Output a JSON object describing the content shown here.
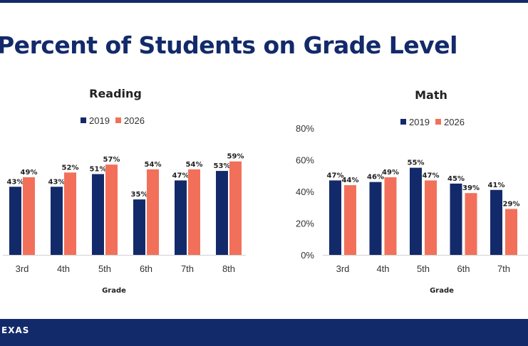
{
  "page": {
    "title": "Percent of Students on Grade Level",
    "footer_logo": "EXAS"
  },
  "colors": {
    "series_2019": "#132a6a",
    "series_2026": "#f2705a",
    "brand": "#132a6a"
  },
  "chart_data": [
    {
      "type": "bar",
      "title": "Reading",
      "xlabel": "Grade",
      "ylabel": "",
      "categories": [
        "3rd",
        "4th",
        "5th",
        "6th",
        "7th",
        "8th"
      ],
      "series": [
        {
          "name": "2019",
          "values": [
            43,
            43,
            51,
            35,
            47,
            53
          ],
          "labels": [
            "43%",
            "43%",
            "51%",
            "35%",
            "47%",
            "53%"
          ]
        },
        {
          "name": "2026",
          "values": [
            49,
            52,
            57,
            54,
            54,
            59
          ],
          "labels": [
            "49%",
            "52%",
            "57%",
            "54%",
            "54%",
            "59%"
          ]
        }
      ],
      "ylim": [
        0,
        80
      ],
      "legend": "top-center",
      "grid": false
    },
    {
      "type": "bar",
      "title": "Math",
      "xlabel": "Grade",
      "ylabel": "",
      "categories": [
        "3rd",
        "4th",
        "5th",
        "6th",
        "7th"
      ],
      "series": [
        {
          "name": "2019",
          "values": [
            47,
            46,
            55,
            45,
            41
          ],
          "labels": [
            "47%",
            "46%",
            "55%",
            "45%",
            "41%"
          ]
        },
        {
          "name": "2026",
          "values": [
            44,
            49,
            47,
            39,
            29
          ],
          "labels": [
            "44%",
            "49%",
            "47%",
            "39%",
            "29%"
          ]
        }
      ],
      "ylim": [
        0,
        80
      ],
      "yticks": [
        "0%",
        "20%",
        "40%",
        "60%",
        "80%"
      ],
      "legend": "top-center",
      "grid": false
    }
  ]
}
